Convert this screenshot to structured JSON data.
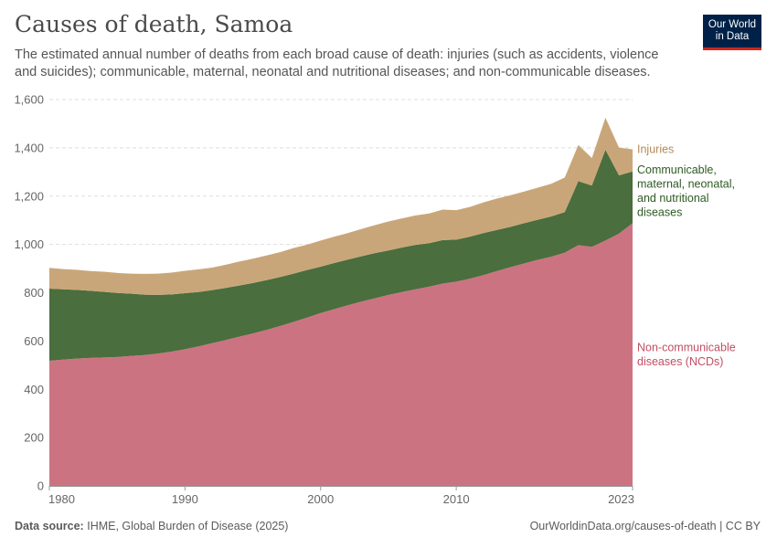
{
  "header": {
    "title": "Causes of death, Samoa",
    "subtitle": "The estimated annual number of deaths from each broad cause of death: injuries (such as accidents, violence and suicides); communicable, maternal, neonatal and nutritional diseases; and non-communicable diseases."
  },
  "logo": {
    "line1": "Our World",
    "line2": "in Data"
  },
  "footer": {
    "source_label": "Data source:",
    "source_text": "IHME, Global Burden of Disease (2025)",
    "link_text": "OurWorldinData.org/causes-of-death | CC BY"
  },
  "colors": {
    "ncd": "#cc7382",
    "communicable": "#4a6e3d",
    "injuries": "#c9a679",
    "ncd_label": "#c24e63",
    "communicable_label": "#2e5a22",
    "injuries_label": "#b48a57",
    "grid": "#dddddd"
  },
  "chart_data": {
    "type": "area",
    "stacked": true,
    "title": "Causes of death, Samoa",
    "xlabel": "",
    "ylabel": "",
    "ylim": [
      0,
      1600
    ],
    "xlim": [
      1980,
      2023
    ],
    "y_ticks": [
      "0",
      "200",
      "400",
      "600",
      "800",
      "1,000",
      "1,200",
      "1,400",
      "1,600"
    ],
    "y_tick_values": [
      0,
      200,
      400,
      600,
      800,
      1000,
      1200,
      1400,
      1600
    ],
    "x_ticks": [
      "1980",
      "1990",
      "2000",
      "2010",
      "2023"
    ],
    "x_tick_values": [
      1980,
      1990,
      2000,
      2010,
      2023
    ],
    "x": [
      1980,
      1981,
      1982,
      1983,
      1984,
      1985,
      1986,
      1987,
      1988,
      1989,
      1990,
      1991,
      1992,
      1993,
      1994,
      1995,
      1996,
      1997,
      1998,
      1999,
      2000,
      2001,
      2002,
      2003,
      2004,
      2005,
      2006,
      2007,
      2008,
      2009,
      2010,
      2011,
      2012,
      2013,
      2014,
      2015,
      2016,
      2017,
      2018,
      2019,
      2020,
      2021,
      2022,
      2023
    ],
    "series": [
      {
        "name": "Non-communicable diseases (NCDs)",
        "label_lines": [
          "Non-communicable",
          "diseases (NCDs)"
        ],
        "values": [
          518,
          523,
          527,
          530,
          532,
          534,
          538,
          542,
          548,
          556,
          566,
          578,
          591,
          604,
          618,
          631,
          646,
          662,
          679,
          697,
          716,
          732,
          748,
          763,
          777,
          791,
          803,
          814,
          825,
          838,
          846,
          858,
          873,
          890,
          906,
          921,
          936,
          949,
          966,
          997,
          990,
          1016,
          1045,
          1088
        ]
      },
      {
        "name": "Communicable, maternal, neonatal, and nutritional diseases",
        "label_lines": [
          "Communicable,",
          "maternal, neonatal,",
          "and nutritional",
          "diseases"
        ],
        "values": [
          299,
          291,
          285,
          278,
          272,
          265,
          258,
          250,
          243,
          237,
          232,
          225,
          220,
          216,
          212,
          209,
          206,
          203,
          200,
          197,
          192,
          191,
          189,
          188,
          187,
          184,
          184,
          184,
          180,
          180,
          174,
          174,
          174,
          170,
          167,
          167,
          166,
          167,
          168,
          265,
          254,
          376,
          241,
          214
        ]
      },
      {
        "name": "Injuries",
        "label_lines": [
          "Injuries"
        ],
        "values": [
          86,
          84,
          83,
          82,
          83,
          83,
          83,
          86,
          88,
          90,
          93,
          94,
          93,
          96,
          99,
          101,
          102,
          103,
          106,
          105,
          108,
          109,
          110,
          113,
          116,
          120,
          121,
          122,
          123,
          126,
          122,
          123,
          127,
          130,
          131,
          131,
          133,
          135,
          143,
          150,
          114,
          133,
          115,
          92
        ]
      }
    ]
  }
}
